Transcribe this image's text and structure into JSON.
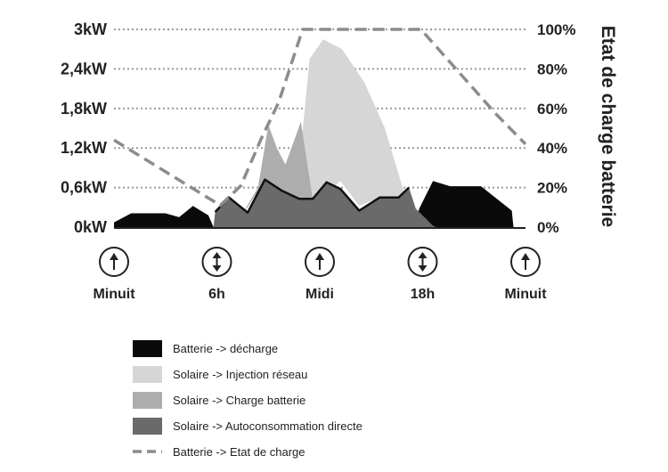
{
  "colors": {
    "decharge": "#0a0a0a",
    "injection": "#d6d6d6",
    "charge": "#adadad",
    "autoconso": "#6a6a6a",
    "soc_line": "#8c8c8c",
    "grid": "#9a9a9a",
    "text": "#222222"
  },
  "icons": {
    "up": "arrow-up-icon",
    "updown": "arrow-up-down-icon"
  },
  "chart_data": {
    "type": "area",
    "title": "",
    "xlabel": "",
    "ylabel": "",
    "ylabel_right": "Etat de charge batterie",
    "x_unit": "hour",
    "xlim": [
      0,
      24
    ],
    "ylim": [
      0,
      3
    ],
    "ylim_right": [
      0,
      100
    ],
    "grid": true,
    "y_ticks": [
      "0kW",
      "0,6kW",
      "1,2kW",
      "1,8kW",
      "2,4kW",
      "3kW"
    ],
    "y_tick_values": [
      0,
      0.6,
      1.2,
      1.8,
      2.4,
      3
    ],
    "y_right_ticks": [
      "0%",
      "20%",
      "40%",
      "60%",
      "80%",
      "100%"
    ],
    "y_right_tick_values": [
      0,
      20,
      40,
      60,
      80,
      100
    ],
    "time_markers": [
      {
        "label": "Minuit",
        "hour": 0,
        "icon": "arrow-up-icon"
      },
      {
        "label": "6h",
        "hour": 6,
        "icon": "arrow-up-down-icon"
      },
      {
        "label": "Midi",
        "hour": 12,
        "icon": "arrow-up-icon"
      },
      {
        "label": "18h",
        "hour": 18,
        "icon": "arrow-up-down-icon"
      },
      {
        "label": "Minuit",
        "hour": 24,
        "icon": "arrow-up-icon"
      }
    ],
    "series": [
      {
        "name": "Batterie -> décharge",
        "color_key": "decharge",
        "points": [
          [
            0,
            0.07
          ],
          [
            1,
            0.21
          ],
          [
            3,
            0.21
          ],
          [
            3.8,
            0.15
          ],
          [
            4.6,
            0.32
          ],
          [
            5.5,
            0.18
          ],
          [
            5.8,
            0.0
          ],
          [
            17.5,
            0.0
          ],
          [
            17.8,
            0.28
          ],
          [
            18.6,
            0.7
          ],
          [
            19.6,
            0.62
          ],
          [
            21.4,
            0.62
          ],
          [
            23.2,
            0.25
          ],
          [
            23.3,
            0.0
          ],
          [
            0,
            0.0
          ]
        ]
      },
      {
        "name": "Solaire -> Injection réseau",
        "color_key": "injection",
        "points": [
          [
            10.6,
            0.35
          ],
          [
            11.4,
            2.55
          ],
          [
            12.2,
            2.85
          ],
          [
            13.3,
            2.7
          ],
          [
            14.6,
            2.2
          ],
          [
            15.8,
            1.5
          ],
          [
            17.0,
            0.45
          ],
          [
            16.6,
            0.32
          ],
          [
            15.5,
            0.45
          ],
          [
            14.3,
            0.32
          ],
          [
            13.2,
            0.7
          ],
          [
            12.4,
            0.5
          ],
          [
            11.5,
            0.35
          ],
          [
            10.8,
            0.3
          ]
        ]
      },
      {
        "name": "Solaire -> Charge batterie",
        "color_key": "charge",
        "points": [
          [
            6.8,
            0.02
          ],
          [
            7.6,
            0.25
          ],
          [
            8.4,
            0.6
          ],
          [
            9.0,
            1.55
          ],
          [
            9.5,
            1.2
          ],
          [
            10.0,
            0.95
          ],
          [
            10.9,
            1.6
          ],
          [
            11.6,
            0.4
          ],
          [
            10.8,
            0.32
          ],
          [
            9.8,
            0.45
          ],
          [
            8.8,
            0.72
          ],
          [
            7.8,
            0.3
          ],
          [
            7.0,
            0.1
          ]
        ]
      },
      {
        "name": "Solaire -> Autoconsommation directe",
        "color_key": "autoconso",
        "points": [
          [
            5.8,
            0.0
          ],
          [
            5.9,
            0.23
          ],
          [
            6.7,
            0.45
          ],
          [
            7.8,
            0.22
          ],
          [
            8.8,
            0.72
          ],
          [
            9.8,
            0.55
          ],
          [
            10.8,
            0.43
          ],
          [
            11.6,
            0.43
          ],
          [
            12.4,
            0.68
          ],
          [
            13.2,
            0.58
          ],
          [
            14.3,
            0.25
          ],
          [
            15.5,
            0.45
          ],
          [
            16.6,
            0.45
          ],
          [
            17.2,
            0.6
          ],
          [
            17.6,
            0.28
          ],
          [
            18.6,
            0.02
          ],
          [
            18.8,
            0.0
          ]
        ]
      }
    ],
    "line_series": [
      {
        "name": "Batterie -> Etat de charge",
        "color_key": "soc_line",
        "dash": true,
        "axis": "right",
        "points": [
          [
            0,
            44
          ],
          [
            6.2,
            11
          ],
          [
            7.4,
            21
          ],
          [
            8.6,
            45
          ],
          [
            9.6,
            63
          ],
          [
            11.0,
            100
          ],
          [
            17.9,
            100
          ],
          [
            22.3,
            57
          ],
          [
            24,
            42
          ]
        ]
      }
    ]
  },
  "legend": [
    {
      "label": "Batterie -> décharge",
      "color_key": "decharge",
      "kind": "box"
    },
    {
      "label": "Solaire -> Injection réseau",
      "color_key": "injection",
      "kind": "box"
    },
    {
      "label": "Solaire -> Charge batterie",
      "color_key": "charge",
      "kind": "box"
    },
    {
      "label": "Solaire -> Autoconsommation directe",
      "color_key": "autoconso",
      "kind": "box"
    },
    {
      "label": "Batterie -> Etat de charge",
      "color_key": "soc_line",
      "kind": "dash"
    }
  ]
}
